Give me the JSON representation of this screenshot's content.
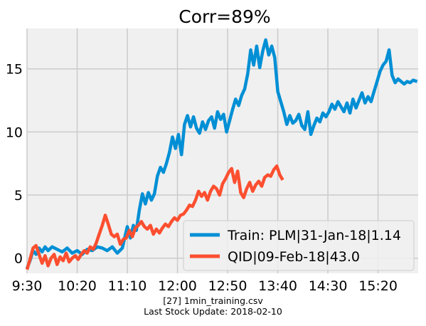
{
  "chart_data": {
    "type": "line",
    "title": "Corr=89%",
    "xlabel": "",
    "ylabel": "",
    "x_tick_labels": [
      "9:30",
      "10:20",
      "11:10",
      "12:00",
      "12:50",
      "13:40",
      "14:30",
      "15:20"
    ],
    "x_tick_minutes": [
      0,
      50,
      100,
      150,
      200,
      250,
      300,
      350
    ],
    "xlim": [
      0,
      390
    ],
    "y_ticks": [
      0,
      5,
      10,
      15
    ],
    "ylim": [
      -1.2,
      18.2
    ],
    "grid": true,
    "legend_position": "lower-right",
    "series": [
      {
        "name": "Train: PLM|31-Jan-18|1.14",
        "color": "#008fd5",
        "minutes": [
          0,
          3,
          6,
          9,
          12,
          15,
          18,
          21,
          25,
          30,
          35,
          40,
          45,
          50,
          55,
          60,
          65,
          70,
          75,
          80,
          85,
          90,
          95,
          100,
          103,
          106,
          109,
          112,
          115,
          118,
          121,
          124,
          127,
          130,
          133,
          136,
          139,
          142,
          145,
          148,
          151,
          154,
          157,
          160,
          163,
          166,
          169,
          172,
          175,
          178,
          181,
          184,
          187,
          190,
          193,
          196,
          199,
          202,
          205,
          208,
          211,
          214,
          217,
          220,
          223,
          226,
          229,
          232,
          235,
          238,
          241,
          244,
          247,
          250,
          253,
          256,
          259,
          262,
          265,
          268,
          271,
          274,
          277,
          280,
          283,
          286,
          289,
          292,
          295,
          298,
          301,
          304,
          307,
          310,
          313,
          316,
          319,
          322,
          325,
          328,
          331,
          334,
          337,
          340,
          343,
          346,
          349,
          352,
          355,
          358,
          361,
          364,
          367,
          370,
          373,
          376,
          379,
          382,
          385,
          389
        ],
        "values": [
          -0.8,
          -0.2,
          0.6,
          0.3,
          0.8,
          0.5,
          0.9,
          0.6,
          0.9,
          0.7,
          0.5,
          0.8,
          0.4,
          0.6,
          0.3,
          0.7,
          0.6,
          0.9,
          0.8,
          0.6,
          0.9,
          0.4,
          0.8,
          2.5,
          1.6,
          2.6,
          2.2,
          3.8,
          5.1,
          4.3,
          5.2,
          4.6,
          5.1,
          6.5,
          7.2,
          6.8,
          7.5,
          8.4,
          9.6,
          8.7,
          9.8,
          8.2,
          10.6,
          11.3,
          10.4,
          11.2,
          10.3,
          9.9,
          10.8,
          10.2,
          10.9,
          11.2,
          10.3,
          11.6,
          11.0,
          11.4,
          10.0,
          10.9,
          11.8,
          12.6,
          12.1,
          12.9,
          13.4,
          14.6,
          16.5,
          15.3,
          16.8,
          15.1,
          16.4,
          17.3,
          16.1,
          16.8,
          15.9,
          13.2,
          12.4,
          11.6,
          10.6,
          11.3,
          10.7,
          10.9,
          11.4,
          10.5,
          10.2,
          11.6,
          9.8,
          10.5,
          11.1,
          10.8,
          11.5,
          11.2,
          11.6,
          12.2,
          11.8,
          12.4,
          12.0,
          11.6,
          12.3,
          11.5,
          12.6,
          11.9,
          12.5,
          13.1,
          12.3,
          12.8,
          12.4,
          13.2,
          14.0,
          14.8,
          15.3,
          15.6,
          16.5,
          14.5,
          13.9,
          14.2,
          14.0,
          13.8,
          14.0,
          13.9,
          14.1,
          14.0
        ]
      },
      {
        "name": "QID|09-Feb-18|43.0",
        "color": "#fc4f30",
        "minutes": [
          0,
          3,
          6,
          9,
          12,
          15,
          18,
          21,
          24,
          27,
          30,
          33,
          36,
          39,
          42,
          45,
          48,
          51,
          54,
          57,
          60,
          63,
          66,
          69,
          72,
          75,
          78,
          81,
          84,
          87,
          90,
          93,
          96,
          99,
          102,
          105,
          108,
          111,
          114,
          117,
          120,
          123,
          126,
          129,
          132,
          135,
          138,
          141,
          144,
          147,
          150,
          153,
          156,
          159,
          162,
          165,
          168,
          171,
          174,
          177,
          180,
          183,
          186,
          189,
          192,
          195,
          198,
          201,
          204,
          207,
          210,
          213,
          216,
          219,
          222,
          225,
          228,
          231,
          234,
          237,
          240,
          243,
          246,
          249,
          252,
          255
        ],
        "values": [
          -0.9,
          -0.1,
          0.8,
          1.0,
          0.3,
          -0.4,
          0.2,
          -0.6,
          0.0,
          0.3,
          -0.5,
          0.1,
          -0.2,
          0.4,
          -0.3,
          0.0,
          0.2,
          -0.1,
          0.3,
          0.6,
          0.4,
          0.9,
          0.7,
          1.2,
          1.9,
          2.6,
          3.4,
          2.7,
          1.9,
          1.7,
          1.9,
          1.1,
          1.5,
          1.6,
          2.2,
          1.7,
          2.4,
          2.6,
          2.9,
          2.5,
          2.3,
          2.6,
          1.9,
          2.3,
          2.0,
          2.4,
          2.7,
          2.5,
          2.9,
          3.2,
          3.0,
          3.4,
          3.5,
          3.8,
          4.2,
          4.1,
          4.6,
          5.3,
          4.9,
          5.2,
          4.6,
          5.3,
          5.7,
          5.5,
          5.0,
          5.9,
          6.3,
          6.8,
          7.1,
          6.0,
          6.9,
          5.2,
          4.8,
          5.5,
          6.0,
          5.3,
          5.8,
          6.1,
          5.7,
          6.4,
          6.6,
          6.5,
          7.0,
          7.3,
          6.6,
          6.2
        ]
      }
    ]
  },
  "footer": {
    "line1": "[27] 1min_training.csv",
    "line2": "Last Stock Update: 2018-02-10"
  }
}
